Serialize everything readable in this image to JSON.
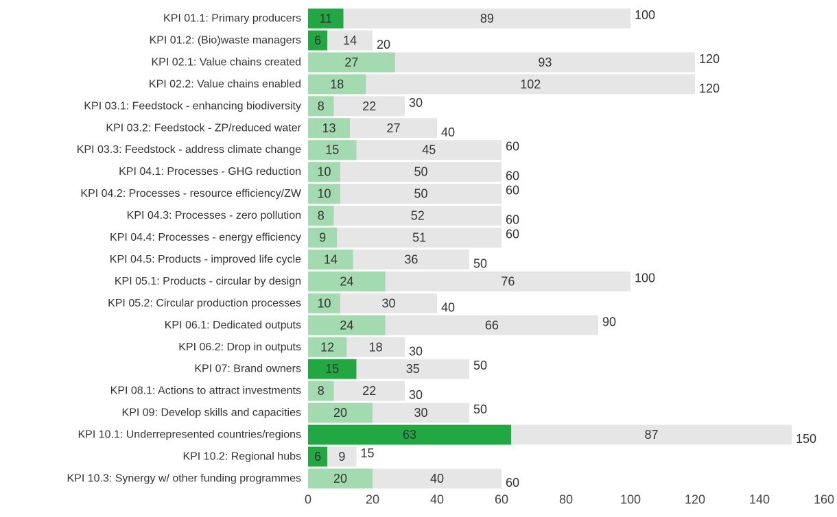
{
  "colors": {
    "achieved_dark": "#21a843",
    "achieved_light": "#a3dab0",
    "remaining": "#e6e6e6",
    "text": "#333333"
  },
  "chart_data": {
    "type": "bar",
    "orientation": "horizontal",
    "stacked": true,
    "xlim": [
      0,
      160
    ],
    "xticks": [
      "0",
      "20",
      "40",
      "60",
      "80",
      "100",
      "120",
      "140",
      "160"
    ],
    "grid": false,
    "legend": "none",
    "categories": [
      "KPI 01.1: Primary producers",
      "KPI 01.2: (Bio)waste managers",
      "KPI 02.1: Value chains created",
      "KPI 02.2: Value chains enabled",
      "KPI 03.1: Feedstock - enhancing biodiversity",
      "KPI 03.2: Feedstock - ZP/reduced water",
      "KPI 03.3: Feedstock - address climate change",
      "KPI 04.1: Processes - GHG reduction",
      "KPI 04.2: Processes - resource efficiency/ZW",
      "KPI 04.3: Processes - zero pollution",
      "KPI 04.4: Processes - energy efficiency",
      "KPI 04.5: Products - improved life cycle",
      "KPI 05.1: Products - circular by design",
      "KPI 05.2: Circular production processes",
      "KPI 06.1: Dedicated outputs",
      "KPI 06.2: Drop in outputs",
      "KPI 07: Brand owners",
      "KPI 08.1: Actions to attract investments",
      "KPI 09: Develop skills and capacities",
      "KPI 10.1: Underrepresented countries/regions",
      "KPI 10.2: Regional hubs",
      "KPI 10.3: Synergy w/ other funding programmes"
    ],
    "series": [
      {
        "values": [
          11,
          6,
          27,
          18,
          8,
          13,
          15,
          10,
          10,
          8,
          9,
          14,
          24,
          10,
          24,
          12,
          15,
          8,
          20,
          63,
          6,
          20
        ],
        "highlight": [
          true,
          true,
          false,
          false,
          false,
          false,
          false,
          false,
          false,
          false,
          false,
          false,
          false,
          false,
          false,
          false,
          true,
          false,
          false,
          true,
          true,
          false
        ]
      },
      {
        "values": [
          89,
          14,
          93,
          102,
          22,
          27,
          45,
          50,
          50,
          52,
          51,
          36,
          76,
          30,
          66,
          18,
          35,
          22,
          30,
          87,
          9,
          40
        ]
      }
    ],
    "totals": [
      "100",
      "20",
      "120",
      "120",
      "30",
      "40",
      "60",
      "60",
      "60",
      "60",
      "60",
      "50",
      "100",
      "40",
      "90",
      "30",
      "50",
      "30",
      "50",
      "150",
      "15",
      "60"
    ]
  }
}
